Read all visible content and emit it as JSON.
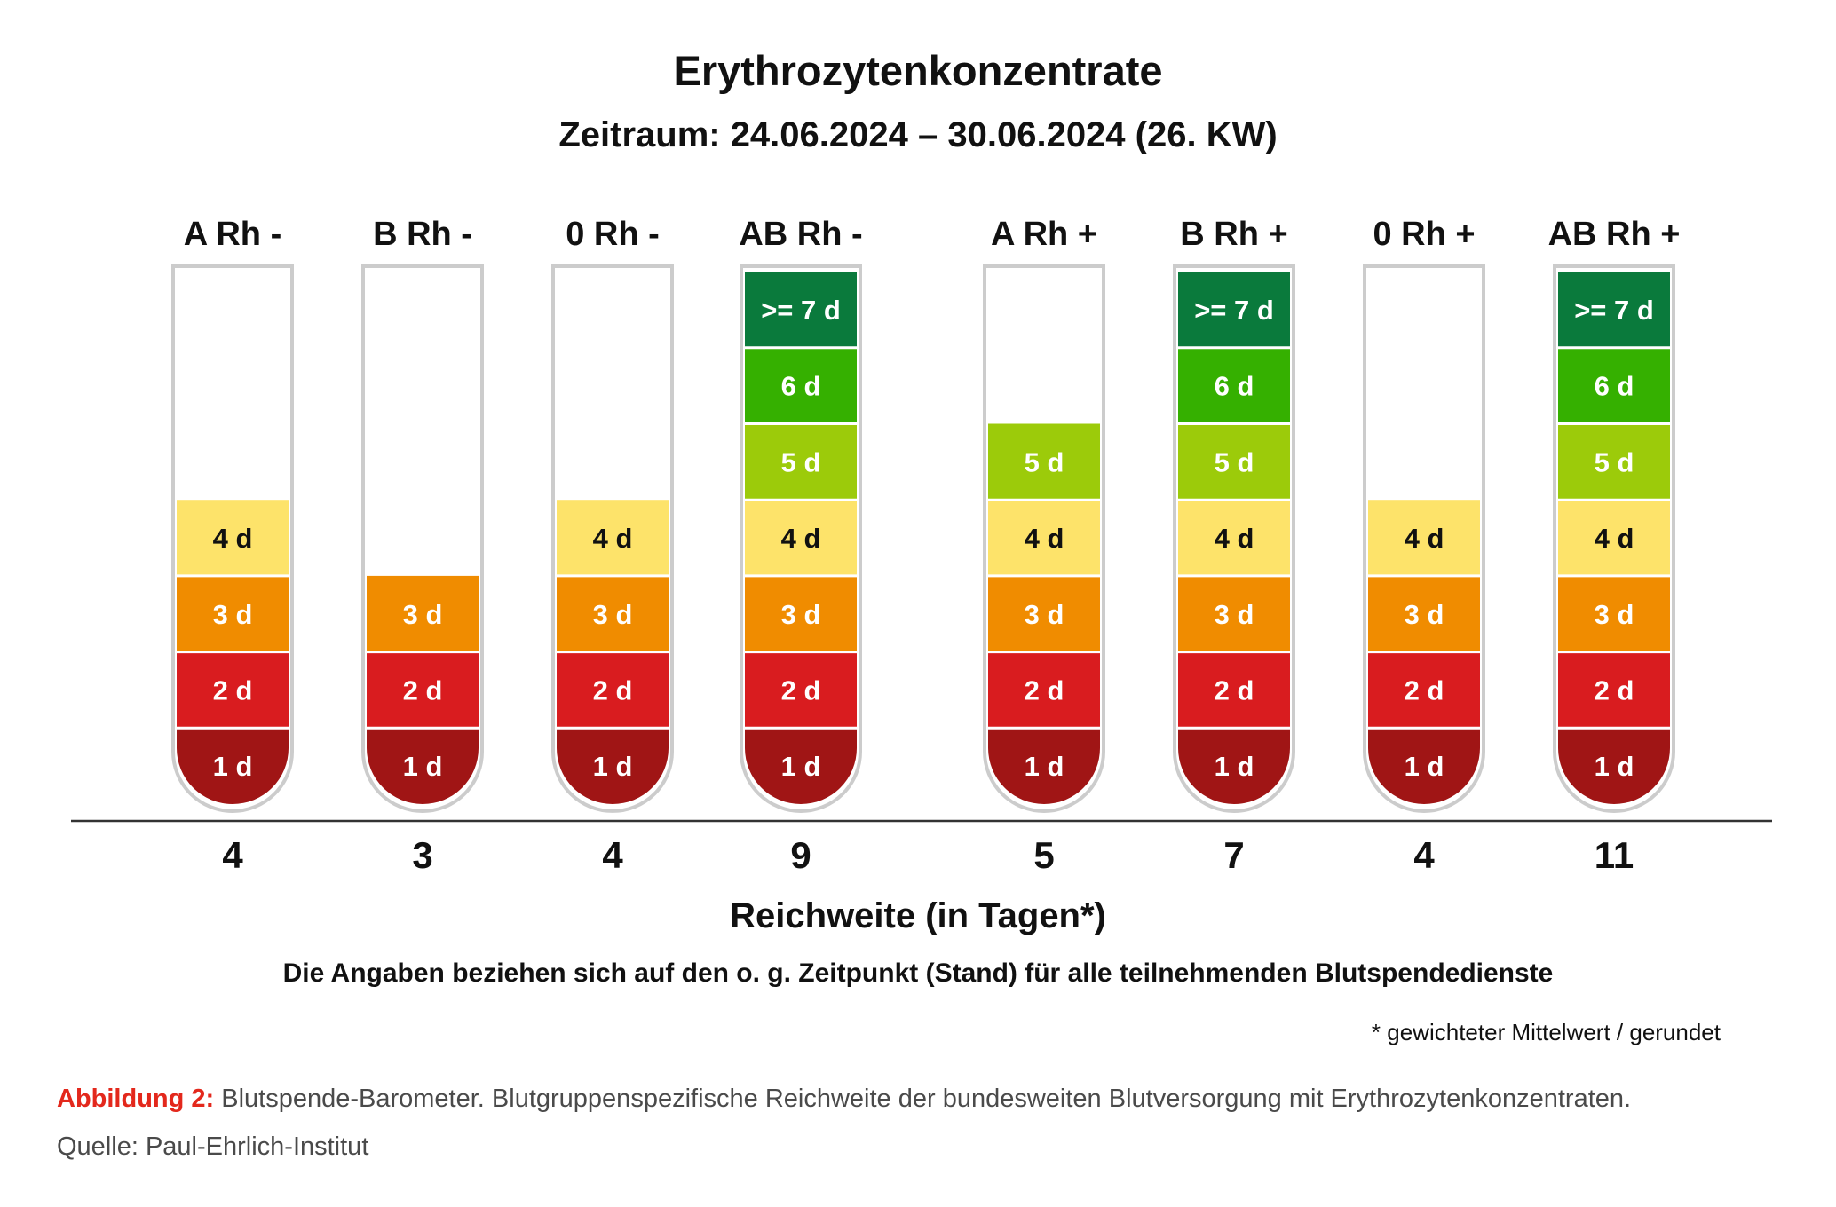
{
  "chart_data": {
    "type": "bar",
    "title": "Erythrozytenkonzentrate",
    "subtitle": "Zeitraum: 24.06.2024 – 30.06.2024 (26. KW)",
    "xlabel": "Reichweite (in Tagen*)",
    "note": "Die Angaben beziehen sich auf den o. g. Zeitpunkt (Stand) für alle teilnehmenden Blutspendedienste",
    "footnote": "* gewichteter Mittelwert / gerundet",
    "categories": [
      "A Rh -",
      "B Rh -",
      "0 Rh -",
      "AB Rh -",
      "A Rh +",
      "B Rh +",
      "0 Rh +",
      "AB Rh +"
    ],
    "values": [
      4,
      3,
      4,
      9,
      5,
      7,
      4,
      11
    ],
    "value_labels": [
      "4",
      "3",
      "4",
      "9",
      "5",
      "7",
      "4",
      "11"
    ],
    "levels": [
      {
        "label": "1 d",
        "color": "#a01515",
        "text_color": "#ffffff"
      },
      {
        "label": "2 d",
        "color": "#d91c1f",
        "text_color": "#ffffff"
      },
      {
        "label": "3 d",
        "color": "#f08c00",
        "text_color": "#ffffff"
      },
      {
        "label": "4 d",
        "color": "#fde36a",
        "text_color": "#111111"
      },
      {
        "label": "5 d",
        "color": "#9ccb0a",
        "text_color": "#ffffff"
      },
      {
        "label": "6 d",
        "color": "#35b000",
        "text_color": "#ffffff"
      },
      {
        "label": ">= 7 d",
        "color": "#0a7a3c",
        "text_color": "#ffffff"
      }
    ],
    "ylim": [
      0,
      7
    ]
  },
  "caption": {
    "label": "Abbildung 2:",
    "text": " Blutspende-Barometer. Blutgruppenspezifische Reichweite der bundesweiten Blutversorgung mit Erythrozytenkonzentraten."
  },
  "source": "Quelle: Paul-Ehrlich-Institut"
}
